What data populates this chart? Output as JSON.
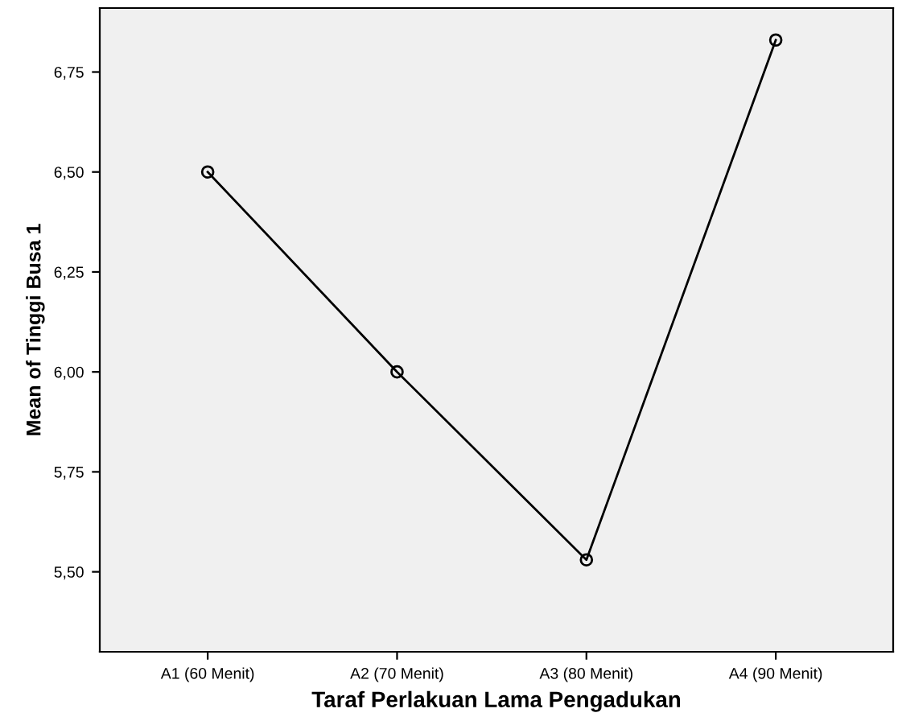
{
  "chart_data": {
    "type": "line",
    "xlabel": "Taraf Perlakuan Lama Pengadukan",
    "ylabel": "Mean of Tinggi Busa 1",
    "categories": [
      "A1 (60 Menit)",
      "A2 (70 Menit)",
      "A3 (80 Menit)",
      "A4 (90 Menit)"
    ],
    "series": [
      {
        "color": "#000000",
        "values": [
          6.5,
          6.0,
          5.53,
          6.83
        ]
      }
    ],
    "ylim": [
      5.3,
      6.91
    ],
    "yticks": [
      {
        "value": 5.5,
        "label": "5,50"
      },
      {
        "value": 5.75,
        "label": "5,75"
      },
      {
        "value": 6.0,
        "label": "6,00"
      },
      {
        "value": 6.25,
        "label": "6,25"
      },
      {
        "value": 6.5,
        "label": "6,50"
      },
      {
        "value": 6.75,
        "label": "6,75"
      }
    ],
    "grid": false,
    "marker": "circle",
    "line_style": "solid",
    "legend": false
  }
}
